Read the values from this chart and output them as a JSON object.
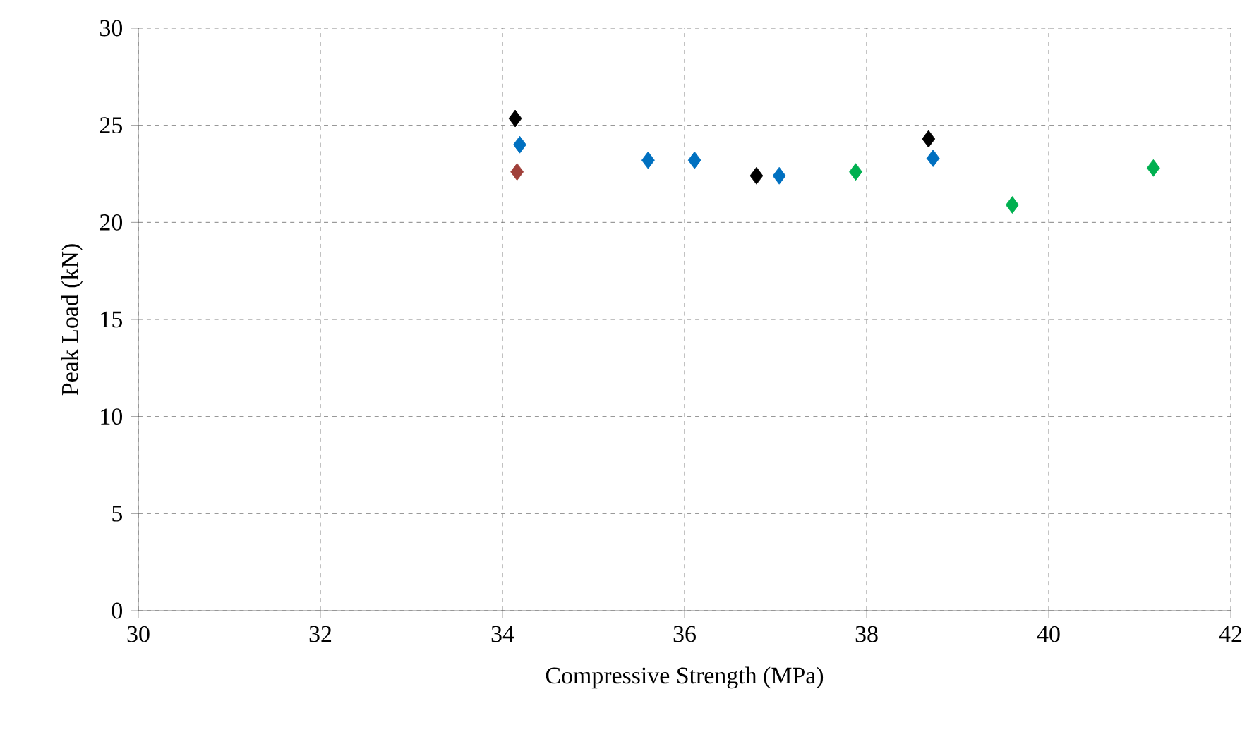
{
  "chart_data": {
    "type": "scatter",
    "xlabel": "Compressive Strength (MPa)",
    "ylabel": "Peak Load (kN)",
    "xlim": [
      30,
      42
    ],
    "xticks": [
      30,
      32,
      34,
      36,
      38,
      40,
      42
    ],
    "ylim": [
      0,
      30
    ],
    "yticks": [
      0,
      5,
      10,
      15,
      20,
      25,
      30
    ],
    "grid": true,
    "marker": "diamond",
    "series": [
      {
        "color": "#000000",
        "x": [
          34.14,
          36.79,
          38.68
        ],
        "values": [
          25.35,
          22.4,
          24.3
        ]
      },
      {
        "color": "#00b050",
        "x": [
          37.88,
          39.6,
          41.15
        ],
        "values": [
          22.6,
          20.9,
          22.8
        ]
      },
      {
        "color": "#0070c0",
        "x": [
          34.19,
          35.6,
          36.11,
          37.04,
          38.73
        ],
        "values": [
          24.0,
          23.2,
          23.2,
          22.4,
          23.3
        ]
      },
      {
        "color": "#a0403a",
        "x": [
          34.16
        ],
        "values": [
          22.6
        ]
      }
    ]
  }
}
